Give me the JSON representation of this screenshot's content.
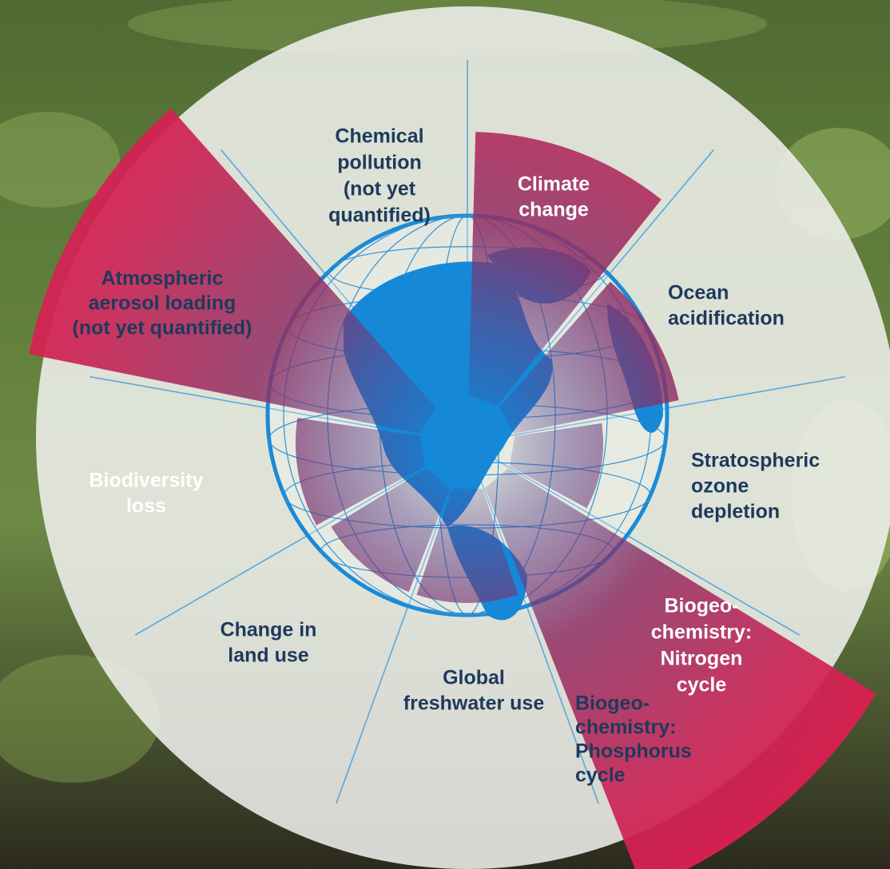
{
  "boundaries": [
    {
      "lines": [
        "Chemical",
        "pollution",
        "(not yet",
        "quantified)"
      ]
    },
    {
      "lines": [
        "Climate",
        "change"
      ]
    },
    {
      "lines": [
        "Ocean",
        "acidification"
      ]
    },
    {
      "lines": [
        "Stratospheric",
        "ozone",
        "depletion"
      ]
    },
    {
      "lines": [
        "Biogeo-",
        "chemistry:",
        "Nitrogen",
        "cycle"
      ]
    },
    {
      "lines": [
        "Biogeo-",
        "chemistry:",
        "Phosphorus",
        "cycle"
      ]
    },
    {
      "lines": [
        "Global",
        "freshwater use"
      ]
    },
    {
      "lines": [
        "Change in",
        "land use"
      ]
    },
    {
      "lines": [
        "Biodiversity",
        "loss"
      ]
    },
    {
      "lines": [
        "Atmospheric",
        "aerosol loading",
        "(not yet quantified)"
      ]
    }
  ]
}
